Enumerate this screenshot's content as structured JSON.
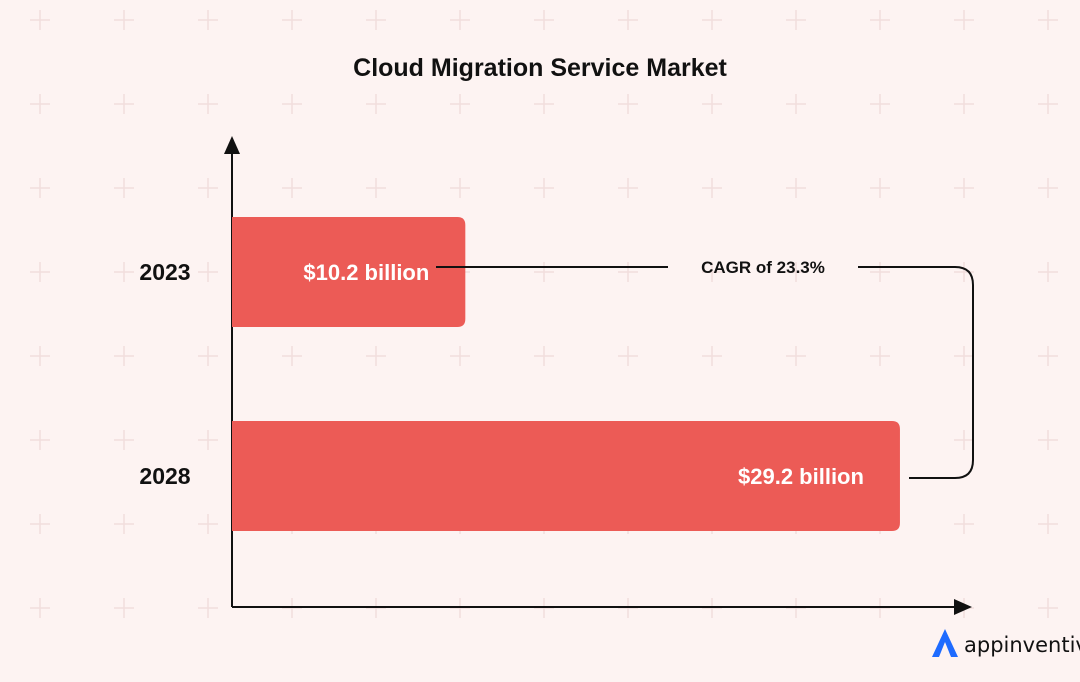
{
  "chart_data": {
    "type": "bar",
    "orientation": "horizontal",
    "title": "Cloud Migration Service Market",
    "categories": [
      "2023",
      "2028"
    ],
    "values": [
      10.2,
      29.2
    ],
    "value_labels": [
      "$10.2 billion",
      "$29.2 billion"
    ],
    "unit": "billion USD",
    "xlabel": "",
    "ylabel": "",
    "xlim": [
      0,
      32
    ],
    "grid": false,
    "legend": "none",
    "annotations": [
      {
        "text": "CAGR of 23.3%",
        "connects": [
          "2023",
          "2028"
        ]
      }
    ],
    "colors": {
      "bar": "#ec5b56",
      "axis": "#111111",
      "background": "#fdf3f2",
      "text": "#111111",
      "bar_text": "#ffffff"
    }
  },
  "brand": {
    "name": "appinventiv",
    "logo_icon": "appinventiv-logo-icon",
    "logo_color": "#1e6bff"
  }
}
